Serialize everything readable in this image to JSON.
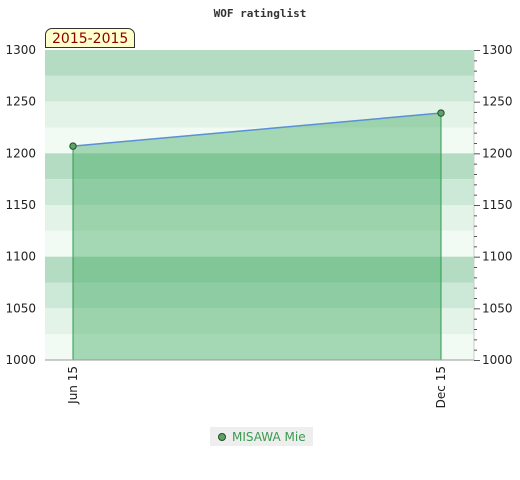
{
  "chart_data": {
    "type": "area",
    "title": "WOF ratinglist",
    "period_label": "2015-2015",
    "x": [
      "Jun 15",
      "Dec 15"
    ],
    "series": [
      {
        "name": "MISAWA Mie",
        "values": [
          1207,
          1239
        ]
      }
    ],
    "ylim": [
      1000,
      1300
    ],
    "y_ticks": [
      "1000",
      "1050",
      "1100",
      "1150",
      "1200",
      "1250",
      "1300"
    ],
    "grid": "horizontal bands",
    "legend_position": "bottom-center",
    "colors": {
      "line": "#5b8fd6",
      "area": "#3aa85a",
      "marker": "#5ea266",
      "band_dark": "#b3dcc2",
      "band_mid": "#cce8d7",
      "band_light": "#e3f3e8",
      "band_pale": "#f2faf4",
      "legend_text": "#3a9a50",
      "badge_text": "#8b0000"
    }
  }
}
